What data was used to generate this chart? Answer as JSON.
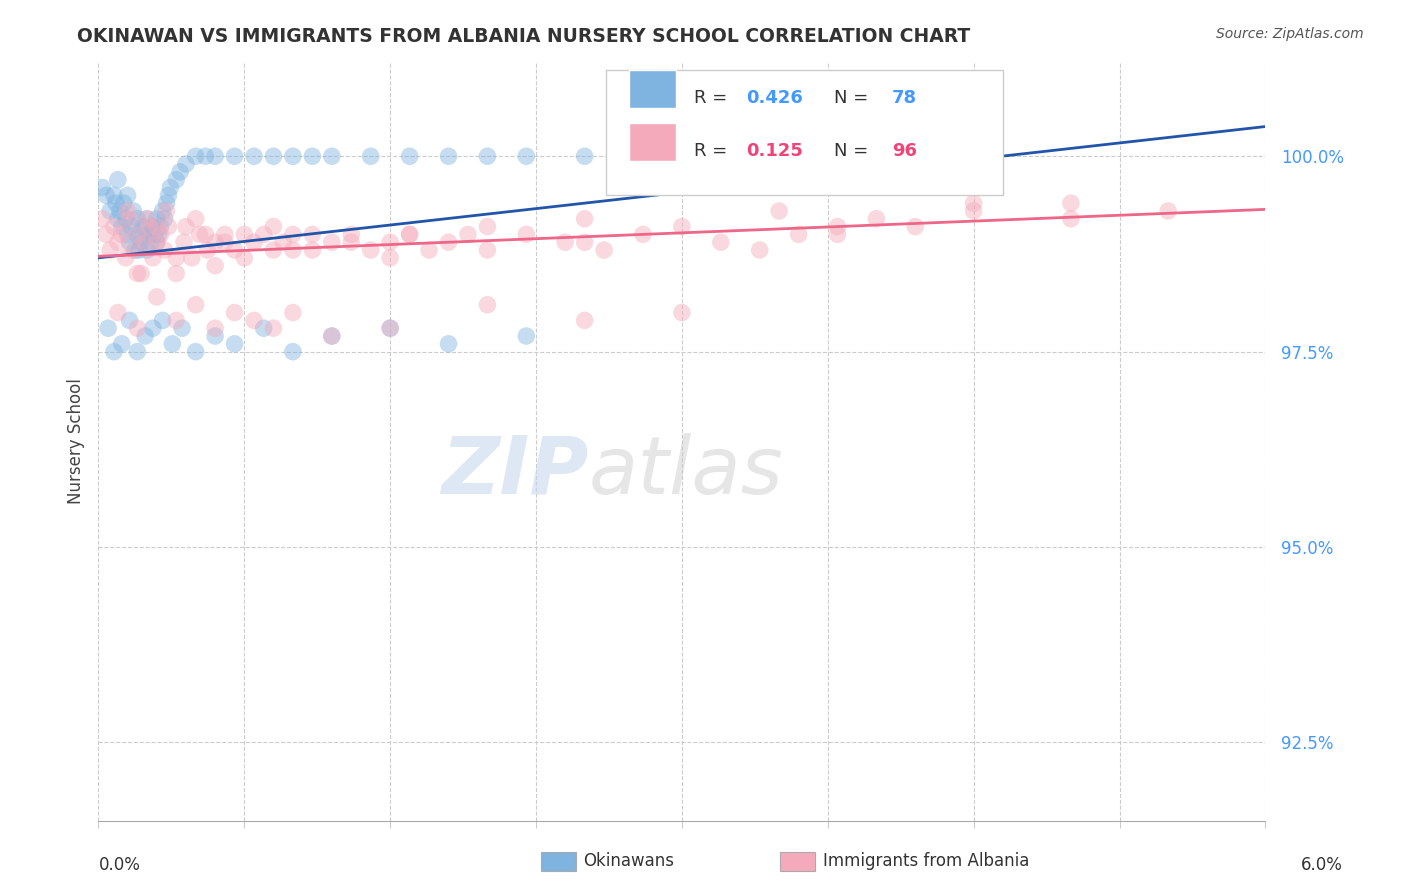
{
  "title": "OKINAWAN VS IMMIGRANTS FROM ALBANIA NURSERY SCHOOL CORRELATION CHART",
  "source": "Source: ZipAtlas.com",
  "ylabel": "Nursery School",
  "x_min": 0.0,
  "x_max": 6.0,
  "y_min": 91.5,
  "y_max": 101.2,
  "yticks": [
    92.5,
    95.0,
    97.5,
    100.0
  ],
  "ytick_labels": [
    "92.5%",
    "95.0%",
    "97.5%",
    "100.0%"
  ],
  "blue_R": 0.426,
  "blue_N": 78,
  "pink_R": 0.125,
  "pink_N": 96,
  "blue_color": "#7FB3E0",
  "pink_color": "#F5AABB",
  "blue_line_color": "#2255AA",
  "pink_line_color": "#EE6688",
  "legend_label_blue": "Okinawans",
  "legend_label_pink": "Immigrants from Albania",
  "blue_points_x": [
    0.02,
    0.04,
    0.06,
    0.08,
    0.09,
    0.1,
    0.1,
    0.11,
    0.12,
    0.13,
    0.14,
    0.15,
    0.15,
    0.16,
    0.17,
    0.18,
    0.19,
    0.2,
    0.2,
    0.21,
    0.22,
    0.23,
    0.24,
    0.25,
    0.25,
    0.26,
    0.27,
    0.28,
    0.29,
    0.3,
    0.3,
    0.31,
    0.32,
    0.33,
    0.34,
    0.35,
    0.36,
    0.37,
    0.4,
    0.42,
    0.45,
    0.5,
    0.55,
    0.6,
    0.7,
    0.8,
    0.9,
    1.0,
    1.1,
    1.2,
    1.4,
    1.6,
    1.8,
    2.0,
    2.2,
    2.5,
    2.8,
    3.2,
    3.6,
    0.05,
    0.08,
    0.12,
    0.16,
    0.2,
    0.24,
    0.28,
    0.33,
    0.38,
    0.43,
    0.5,
    0.6,
    0.7,
    0.85,
    1.0,
    1.2,
    1.5,
    1.8,
    2.2
  ],
  "blue_points_y": [
    99.6,
    99.5,
    99.3,
    99.5,
    99.4,
    99.2,
    99.7,
    99.3,
    99.1,
    99.4,
    99.2,
    99.0,
    99.5,
    98.9,
    99.1,
    99.3,
    98.8,
    99.0,
    99.2,
    98.8,
    98.9,
    99.1,
    99.0,
    98.8,
    99.2,
    99.0,
    98.9,
    99.1,
    99.0,
    98.9,
    99.2,
    99.0,
    99.1,
    99.3,
    99.2,
    99.4,
    99.5,
    99.6,
    99.7,
    99.8,
    99.9,
    100.0,
    100.0,
    100.0,
    100.0,
    100.0,
    100.0,
    100.0,
    100.0,
    100.0,
    100.0,
    100.0,
    100.0,
    100.0,
    100.0,
    100.0,
    100.0,
    100.0,
    100.0,
    97.8,
    97.5,
    97.6,
    97.9,
    97.5,
    97.7,
    97.8,
    97.9,
    97.6,
    97.8,
    97.5,
    97.7,
    97.6,
    97.8,
    97.5,
    97.7,
    97.8,
    97.6,
    97.7
  ],
  "pink_points_x": [
    0.02,
    0.04,
    0.06,
    0.08,
    0.1,
    0.12,
    0.14,
    0.16,
    0.18,
    0.2,
    0.22,
    0.24,
    0.26,
    0.28,
    0.3,
    0.32,
    0.34,
    0.36,
    0.4,
    0.44,
    0.48,
    0.52,
    0.56,
    0.6,
    0.65,
    0.7,
    0.75,
    0.8,
    0.85,
    0.9,
    0.95,
    1.0,
    1.1,
    1.2,
    1.3,
    1.4,
    1.5,
    1.6,
    1.7,
    1.8,
    1.9,
    2.0,
    2.2,
    2.4,
    2.6,
    2.8,
    3.0,
    3.2,
    3.4,
    3.6,
    3.8,
    4.0,
    4.5,
    5.0,
    5.5,
    0.1,
    0.2,
    0.3,
    0.4,
    0.5,
    0.6,
    0.7,
    0.8,
    0.9,
    1.0,
    1.2,
    1.5,
    2.0,
    2.5,
    3.0,
    0.15,
    0.25,
    0.35,
    0.45,
    0.55,
    0.65,
    0.75,
    0.9,
    1.1,
    1.3,
    1.6,
    2.0,
    2.5,
    3.5,
    4.5,
    0.2,
    0.4,
    0.6,
    1.0,
    1.5,
    2.5,
    3.8,
    5.0,
    4.2,
    0.3,
    0.5
  ],
  "pink_points_y": [
    99.2,
    99.0,
    98.8,
    99.1,
    98.9,
    99.0,
    98.7,
    99.2,
    98.8,
    99.0,
    98.5,
    98.9,
    99.1,
    98.7,
    98.9,
    99.0,
    98.8,
    99.1,
    98.5,
    98.9,
    98.7,
    99.0,
    98.8,
    98.9,
    99.0,
    98.8,
    98.7,
    98.9,
    99.0,
    98.8,
    98.9,
    99.0,
    98.8,
    98.9,
    99.0,
    98.8,
    98.9,
    99.0,
    98.8,
    98.9,
    99.0,
    98.8,
    99.0,
    98.9,
    98.8,
    99.0,
    99.1,
    98.9,
    98.8,
    99.0,
    99.1,
    99.2,
    99.3,
    99.4,
    99.3,
    98.0,
    97.8,
    98.2,
    97.9,
    98.1,
    97.8,
    98.0,
    97.9,
    97.8,
    98.0,
    97.7,
    97.8,
    98.1,
    97.9,
    98.0,
    99.3,
    99.2,
    99.3,
    99.1,
    99.0,
    98.9,
    99.0,
    99.1,
    99.0,
    98.9,
    99.0,
    99.1,
    99.2,
    99.3,
    99.4,
    98.5,
    98.7,
    98.6,
    98.8,
    98.7,
    98.9,
    99.0,
    99.2,
    99.1,
    99.1,
    99.2
  ]
}
